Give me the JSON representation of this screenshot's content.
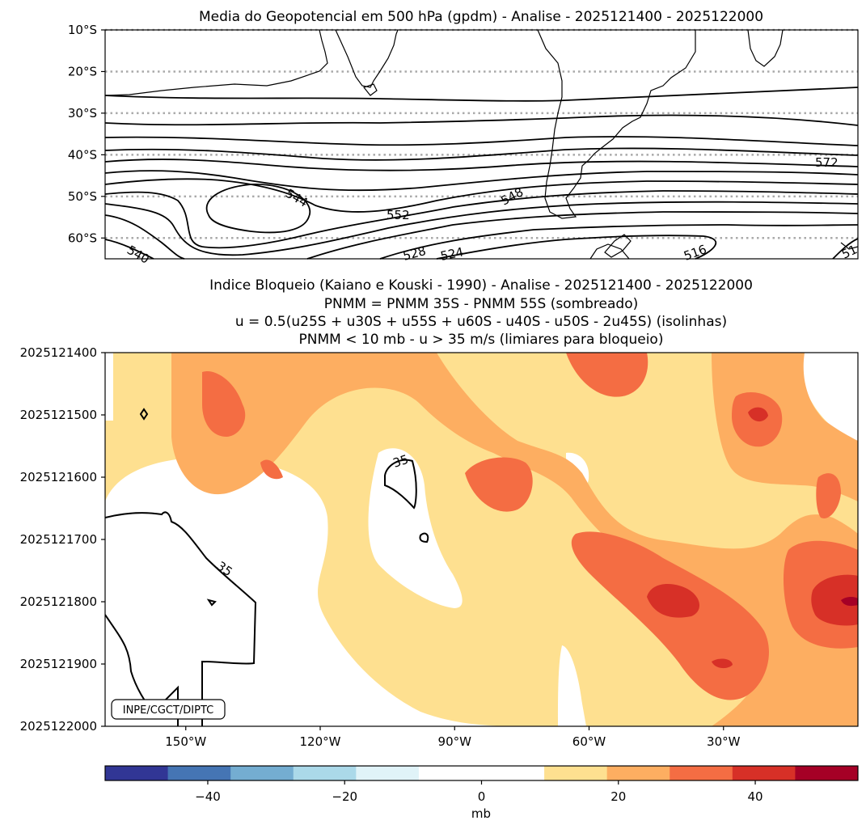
{
  "chart_data": [
    {
      "type": "contour",
      "title": "Media do Geopotencial em 500 hPa (gpdm) - Analise - 2025121400 - 2025122000",
      "y_ticks": [
        "10°S",
        "20°S",
        "30°S",
        "40°S",
        "50°S",
        "60°S"
      ],
      "y_values": [
        -10,
        -20,
        -30,
        -40,
        -50,
        -60
      ],
      "ylim": [
        -65,
        -10
      ],
      "grid": "dotted gray latitude lines",
      "contour_labels": [
        "544",
        "552",
        "548",
        "572",
        "528",
        "524",
        "516",
        "540",
        "51"
      ]
    },
    {
      "type": "heatmap",
      "title_lines": [
        "Indice Bloqueio (Kaiano e Kouski - 1990) - Analise - 2025121400 - 2025122000",
        "PNMM = PNMM 35S - PNMM 55S (sombreado)",
        "u = 0.5(u25S + u30S + u55S + u60S - u40S - u50S - 2u45S) (isolinhas)",
        "PNMM < 10 mb - u > 35 m/s (limiares para bloqueio)"
      ],
      "y_ticks": [
        "2025121400",
        "2025121500",
        "2025121600",
        "2025121700",
        "2025121800",
        "2025121900",
        "2025122000"
      ],
      "x_ticks": [
        "150°W",
        "120°W",
        "90°W",
        "60°W",
        "30°W"
      ],
      "x_values": [
        -150,
        -120,
        -90,
        -60,
        -30
      ],
      "xlim": [
        -168,
        0
      ],
      "contour_labels": [
        "35",
        "35"
      ],
      "watermark": "INPE/CGCT/DIPTC"
    }
  ],
  "colorbar": {
    "label": "mb",
    "ticks": [
      "−40",
      "−20",
      "0",
      "20",
      "40"
    ],
    "tick_values": [
      -40,
      -20,
      0,
      20,
      40
    ],
    "range": [
      -55,
      55
    ],
    "colors": [
      "#313695",
      "#4575b4",
      "#74add1",
      "#abd9e9",
      "#e0f3f8",
      "#ffffff",
      "#ffffff",
      "#fee090",
      "#fdae61",
      "#f46d43",
      "#d73027",
      "#a50026"
    ]
  }
}
